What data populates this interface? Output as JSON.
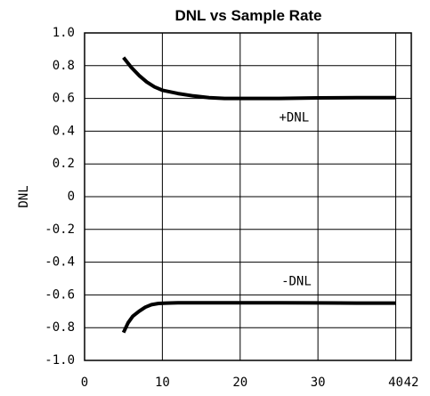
{
  "chart_data": {
    "type": "line",
    "title": "DNL vs Sample Rate",
    "xlabel": "",
    "ylabel": "DNL",
    "xlim": [
      0,
      42
    ],
    "ylim": [
      -1.0,
      1.0
    ],
    "x_ticks": [
      0,
      10,
      20,
      30,
      40,
      42
    ],
    "x_tick_labels": [
      "0",
      "10",
      "20",
      "30",
      "40",
      "42"
    ],
    "y_ticks": [
      1.0,
      0.8,
      0.6,
      0.4,
      0.2,
      0,
      -0.2,
      -0.4,
      -0.6,
      -0.8,
      -1.0
    ],
    "y_tick_labels": [
      "1.0",
      "0.8",
      "0.6",
      "0.4",
      "0.2",
      "0",
      "-0.2",
      "-0.4",
      "-0.6",
      "-0.8",
      "-1.0"
    ],
    "grid": true,
    "annotations": [
      {
        "text": "+DNL",
        "x": 25.0,
        "y": 0.48
      },
      {
        "text": "-DNL",
        "x": 25.3,
        "y": -0.52
      }
    ],
    "series": [
      {
        "x": [
          5.0,
          6.0,
          7.0,
          8.0,
          9.0,
          10.0,
          12.0,
          14.0,
          16.0,
          18.0,
          20.0,
          25.0,
          30.0,
          35.0,
          40.0
        ],
        "y": [
          0.85,
          0.79,
          0.74,
          0.7,
          0.67,
          0.65,
          0.63,
          0.615,
          0.605,
          0.6,
          0.6,
          0.6,
          0.603,
          0.605,
          0.605
        ]
      },
      {
        "x": [
          5.0,
          5.6,
          6.2,
          7.0,
          7.8,
          8.6,
          9.5,
          10.5,
          12.0,
          15.0,
          20.0,
          25.0,
          30.0,
          35.0,
          40.0
        ],
        "y": [
          -0.83,
          -0.77,
          -0.73,
          -0.7,
          -0.675,
          -0.66,
          -0.652,
          -0.65,
          -0.648,
          -0.648,
          -0.648,
          -0.648,
          -0.649,
          -0.65,
          -0.65
        ]
      }
    ]
  }
}
